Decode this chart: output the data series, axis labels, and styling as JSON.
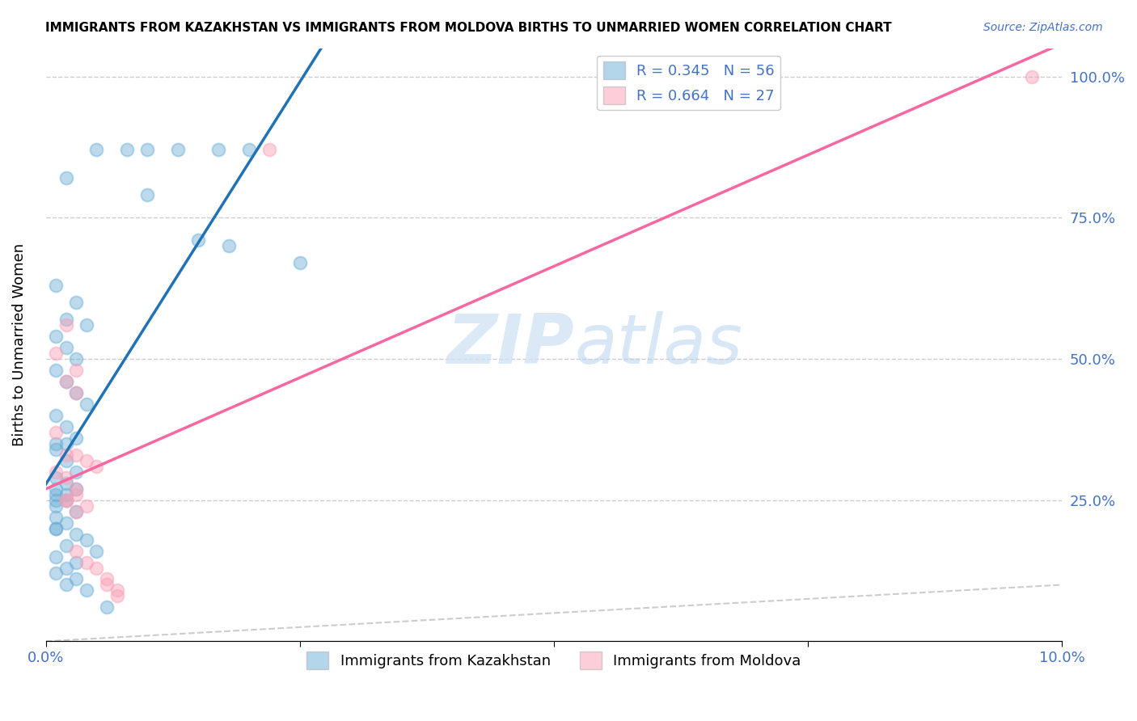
{
  "title": "IMMIGRANTS FROM KAZAKHSTAN VS IMMIGRANTS FROM MOLDOVA BIRTHS TO UNMARRIED WOMEN CORRELATION CHART",
  "source": "Source: ZipAtlas.com",
  "xlabel_blue": "Immigrants from Kazakhstan",
  "xlabel_pink": "Immigrants from Moldova",
  "ylabel": "Births to Unmarried Women",
  "watermark_zip": "ZIP",
  "watermark_atlas": "atlas",
  "R_blue": 0.345,
  "N_blue": 56,
  "R_pink": 0.664,
  "N_pink": 27,
  "color_blue": "#6baed6",
  "color_pink": "#fa9fb5",
  "color_blue_line": "#2171b5",
  "color_pink_line": "#f768a1",
  "color_diag": "#aaaaaa",
  "xlim": [
    0.0,
    0.1
  ],
  "ylim": [
    0.0,
    1.05
  ],
  "kazakhstan_x": [
    0.005,
    0.008,
    0.01,
    0.013,
    0.017,
    0.02,
    0.002,
    0.01,
    0.015,
    0.018,
    0.001,
    0.003,
    0.002,
    0.004,
    0.001,
    0.002,
    0.003,
    0.001,
    0.002,
    0.003,
    0.004,
    0.001,
    0.002,
    0.003,
    0.001,
    0.002,
    0.001,
    0.002,
    0.003,
    0.001,
    0.002,
    0.001,
    0.003,
    0.002,
    0.001,
    0.001,
    0.002,
    0.001,
    0.003,
    0.001,
    0.002,
    0.001,
    0.001,
    0.003,
    0.004,
    0.002,
    0.005,
    0.001,
    0.003,
    0.002,
    0.001,
    0.003,
    0.002,
    0.004,
    0.006,
    0.025
  ],
  "kazakhstan_y": [
    0.87,
    0.87,
    0.87,
    0.87,
    0.87,
    0.87,
    0.82,
    0.79,
    0.71,
    0.7,
    0.63,
    0.6,
    0.57,
    0.56,
    0.54,
    0.52,
    0.5,
    0.48,
    0.46,
    0.44,
    0.42,
    0.4,
    0.38,
    0.36,
    0.35,
    0.35,
    0.34,
    0.32,
    0.3,
    0.29,
    0.28,
    0.27,
    0.27,
    0.26,
    0.26,
    0.25,
    0.25,
    0.24,
    0.23,
    0.22,
    0.21,
    0.2,
    0.2,
    0.19,
    0.18,
    0.17,
    0.16,
    0.15,
    0.14,
    0.13,
    0.12,
    0.11,
    0.1,
    0.09,
    0.06,
    0.67
  ],
  "moldova_x": [
    0.022,
    0.002,
    0.001,
    0.003,
    0.002,
    0.003,
    0.001,
    0.002,
    0.003,
    0.004,
    0.005,
    0.001,
    0.002,
    0.003,
    0.003,
    0.002,
    0.004,
    0.003,
    0.003,
    0.004,
    0.005,
    0.006,
    0.006,
    0.007,
    0.007,
    0.002,
    0.097
  ],
  "moldova_y": [
    0.87,
    0.56,
    0.51,
    0.48,
    0.46,
    0.44,
    0.37,
    0.33,
    0.33,
    0.32,
    0.31,
    0.3,
    0.29,
    0.27,
    0.26,
    0.25,
    0.24,
    0.23,
    0.16,
    0.14,
    0.13,
    0.11,
    0.1,
    0.09,
    0.08,
    0.25,
    1.0
  ]
}
